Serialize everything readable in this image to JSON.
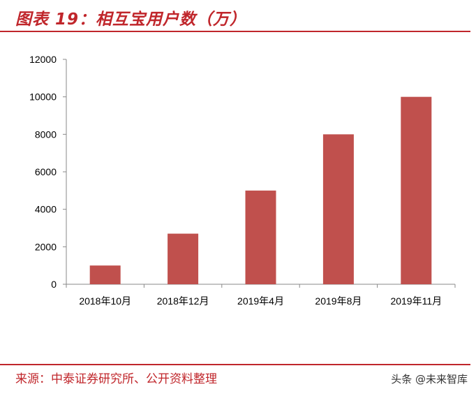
{
  "header": {
    "title": "图表 19：相互宝用户数（万）"
  },
  "footer": {
    "source": "来源：中泰证券研究所、公开资料整理",
    "watermark": "头条 @未来智库"
  },
  "colors": {
    "accent": "#c0262b",
    "bar": "#c0504d"
  },
  "chart_data": {
    "type": "bar",
    "categories": [
      "2018年10月",
      "2018年12月",
      "2019年4月",
      "2019年8月",
      "2019年11月"
    ],
    "values": [
      1000,
      2700,
      5000,
      8000,
      10000
    ],
    "title": "",
    "xlabel": "",
    "ylabel": "",
    "ylim": [
      0,
      12000
    ],
    "yticks": [
      0,
      2000,
      4000,
      6000,
      8000,
      10000,
      12000
    ],
    "grid": false,
    "legend": "none"
  }
}
